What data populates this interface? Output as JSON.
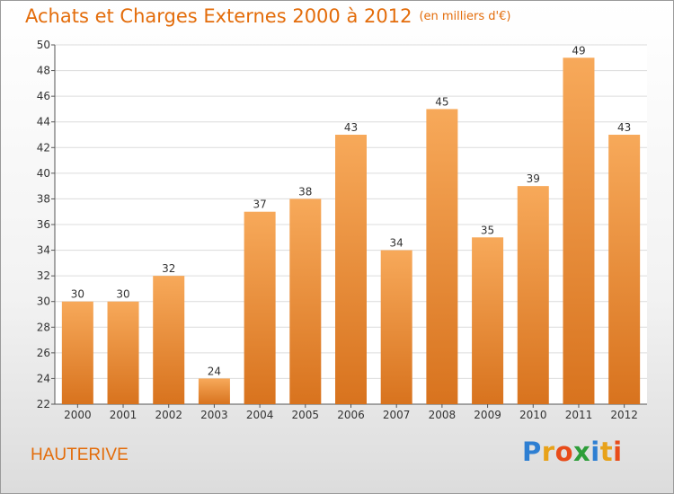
{
  "title": "Achats et Charges Externes 2000 à 2012",
  "unit": "(en milliers d'€)",
  "commune": "HAUTERIVE",
  "logo": "Proxiti",
  "colors": {
    "bar_light": "#f7a95a",
    "bar_dark": "#d8731e",
    "title": "#e36c0a"
  },
  "chart_data": {
    "type": "bar",
    "categories": [
      "2000",
      "2001",
      "2002",
      "2003",
      "2004",
      "2005",
      "2006",
      "2007",
      "2008",
      "2009",
      "2010",
      "2011",
      "2012"
    ],
    "values": [
      30,
      30,
      32,
      24,
      37,
      38,
      43,
      34,
      45,
      35,
      39,
      49,
      43
    ],
    "ylim": [
      22,
      50
    ],
    "yticks": [
      22,
      24,
      26,
      28,
      30,
      32,
      34,
      36,
      38,
      40,
      42,
      44,
      46,
      48,
      50
    ],
    "grid": true,
    "data_labels": true
  }
}
